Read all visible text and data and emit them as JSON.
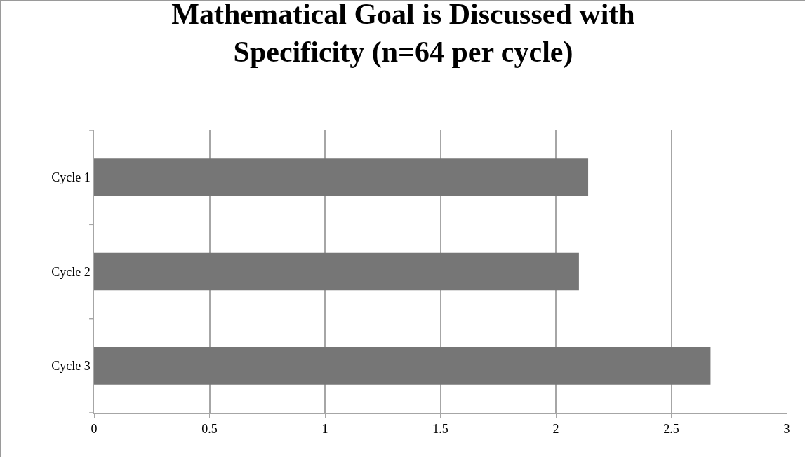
{
  "chart_data": {
    "type": "bar",
    "orientation": "horizontal",
    "title": "Mathematical Goal is Discussed with\nSpecificity (n=64 per cycle)",
    "categories": [
      "Cycle 1",
      "Cycle 2",
      "Cycle 3"
    ],
    "values": [
      2.14,
      2.1,
      2.67
    ],
    "color": "#767676",
    "xlim": [
      0,
      3
    ],
    "xticks": [
      0,
      0.5,
      1,
      1.5,
      2,
      2.5,
      3
    ],
    "grid": "x",
    "legend": false
  }
}
